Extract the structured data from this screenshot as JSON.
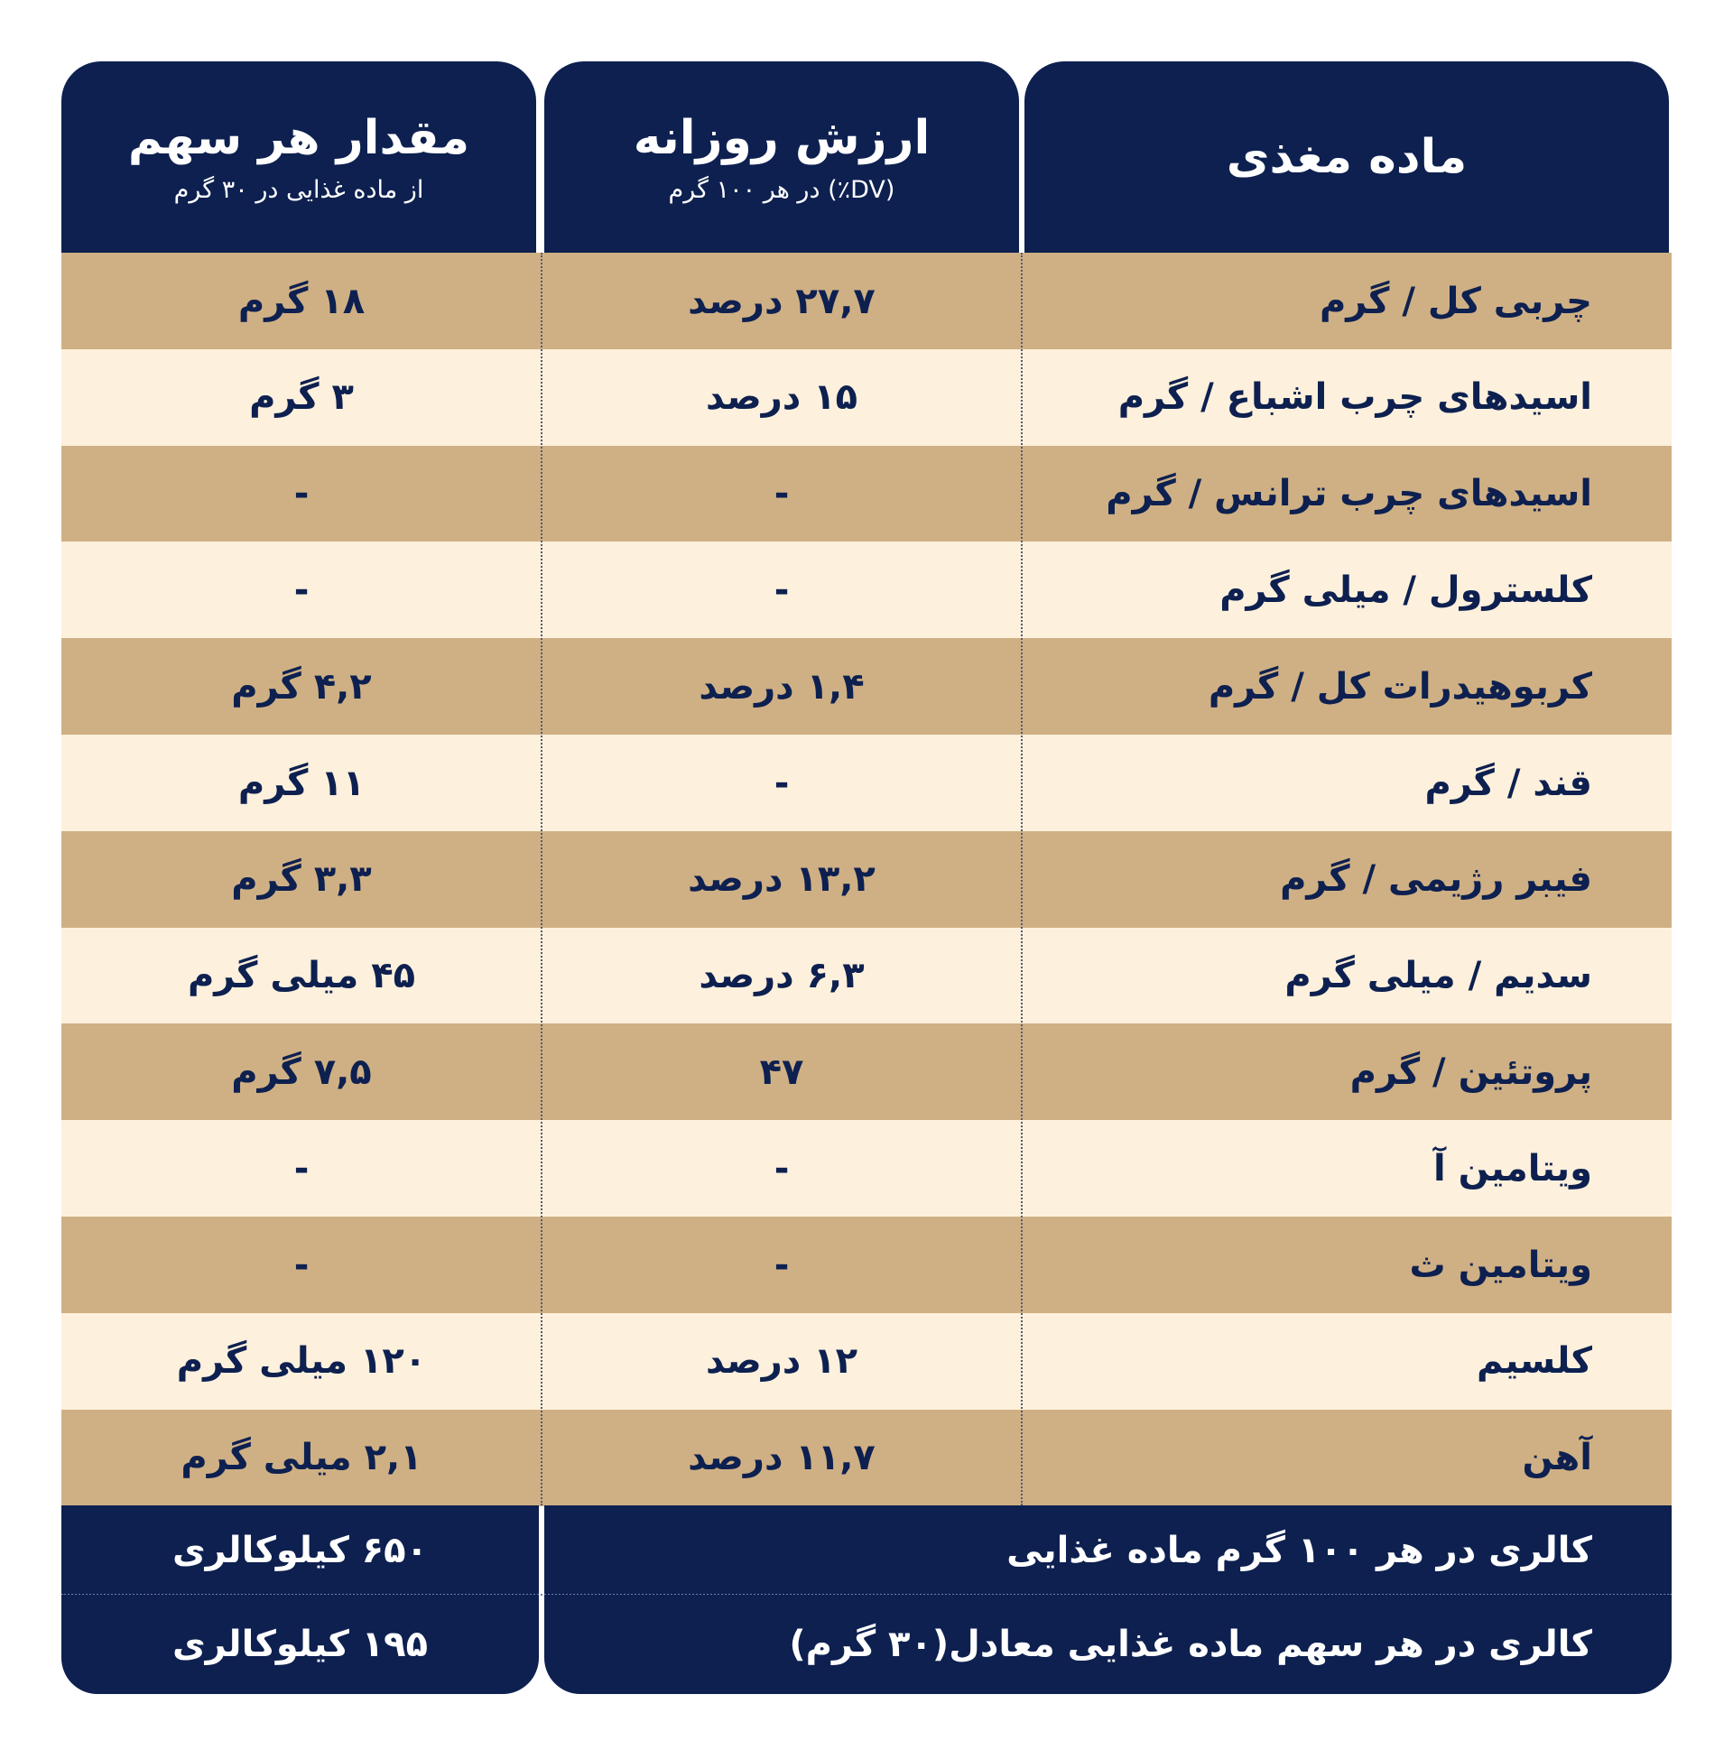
{
  "header": {
    "columns": [
      {
        "title": "ماده مغذی"
      },
      {
        "title": "ارزش روزانه",
        "subtitle": "(DV٪) در هر ۱۰۰ گرم"
      },
      {
        "title": "مقدار هر سهم",
        "subtitle": "از ماده غذایی در ۳۰ گرم"
      }
    ]
  },
  "table": {
    "rows": [
      [
        "چربی کل / گرم",
        "۲۷,۷ درصد",
        "۱۸ گرم"
      ],
      [
        "اسیدهای چرب اشباع / گرم",
        "۱۵ درصد",
        "۳ گرم"
      ],
      [
        "اسیدهای چرب ترانس / گرم",
        "-",
        "-"
      ],
      [
        "کلسترول / میلی گرم",
        "-",
        "-"
      ],
      [
        "کربوهیدرات کل / گرم",
        "۱,۴ درصد",
        "۴,۲ گرم"
      ],
      [
        "قند / گرم",
        "-",
        "۱۱ گرم"
      ],
      [
        "فیبر رژیمی / گرم",
        "۱۳,۲ درصد",
        "۳,۳ گرم"
      ],
      [
        "سدیم / میلی گرم",
        "۶,۳ درصد",
        "۴۵ میلی گرم"
      ],
      [
        "پروتئین / گرم",
        "۴۷",
        "۷,۵ گرم"
      ],
      [
        "ویتامین آ",
        "-",
        "-"
      ],
      [
        "ویتامین ث",
        "-",
        "-"
      ],
      [
        "کلسیم",
        "۱۲ درصد",
        "۱۲۰ میلی گرم"
      ],
      [
        "آهن",
        "۱۱,۷ درصد",
        "۲,۱ میلی گرم"
      ]
    ]
  },
  "footer": {
    "rows": [
      [
        "کالری در هر ۱۰۰ گرم ماده غذایی",
        "۶۵۰ کیلوکالری"
      ],
      [
        "کالری در هر سهم ماده غذایی معادل(۳۰ گرم)",
        "۱۹۵ کیلوکالری"
      ]
    ]
  }
}
